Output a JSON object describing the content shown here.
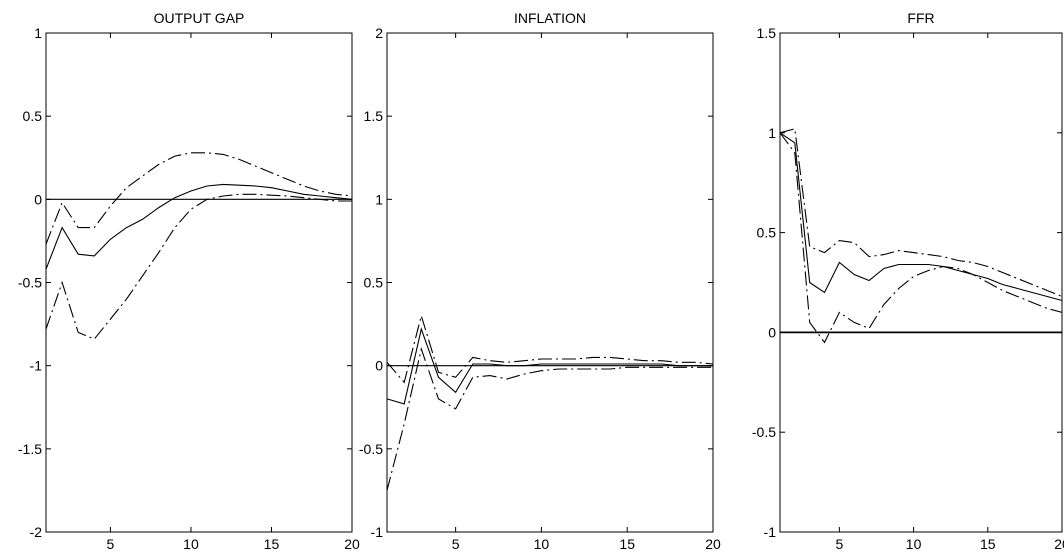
{
  "chart_data": [
    {
      "type": "line",
      "title": "OUTPUT GAP",
      "xlabel": "",
      "ylabel": "",
      "xlim": [
        1,
        20
      ],
      "ylim": [
        -2,
        1
      ],
      "xticks": [
        5,
        10,
        15,
        20
      ],
      "xtick_labels": [
        "5",
        "10",
        "15",
        "20"
      ],
      "yticks": [
        -2,
        -1.5,
        -1,
        -0.5,
        0,
        0.5,
        1
      ],
      "ytick_labels": [
        "-2",
        "-1.5",
        "-1",
        "-0.5",
        "0",
        "0.5",
        "1"
      ],
      "zero_line": true,
      "grid": false,
      "x": [
        1,
        2,
        3,
        4,
        5,
        6,
        7,
        8,
        9,
        10,
        11,
        12,
        13,
        14,
        15,
        16,
        17,
        18,
        19,
        20
      ],
      "series": [
        {
          "style": "solid",
          "values": [
            -0.42,
            -0.17,
            -0.33,
            -0.34,
            -0.24,
            -0.17,
            -0.12,
            -0.05,
            0.01,
            0.05,
            0.08,
            0.09,
            0.085,
            0.08,
            0.07,
            0.05,
            0.03,
            0.02,
            0.01,
            0.0
          ]
        },
        {
          "style": "dashdot",
          "values": [
            -0.27,
            -0.02,
            -0.17,
            -0.17,
            -0.04,
            0.07,
            0.14,
            0.21,
            0.26,
            0.28,
            0.28,
            0.27,
            0.24,
            0.2,
            0.16,
            0.12,
            0.08,
            0.05,
            0.03,
            0.02
          ]
        },
        {
          "style": "dashdot",
          "values": [
            -0.78,
            -0.5,
            -0.8,
            -0.84,
            -0.72,
            -0.6,
            -0.46,
            -0.32,
            -0.17,
            -0.06,
            0.0,
            0.02,
            0.03,
            0.03,
            0.025,
            0.02,
            0.01,
            0.0,
            -0.01,
            -0.01
          ]
        }
      ]
    },
    {
      "type": "line",
      "title": "INFLATION",
      "xlabel": "",
      "ylabel": "",
      "xlim": [
        1,
        20
      ],
      "ylim": [
        -1,
        2
      ],
      "xticks": [
        5,
        10,
        15,
        20
      ],
      "xtick_labels": [
        "5",
        "10",
        "15",
        "20"
      ],
      "yticks": [
        -1,
        -0.5,
        0,
        0.5,
        1,
        1.5,
        2
      ],
      "ytick_labels": [
        "-1",
        "-0.5",
        "0",
        "0.5",
        "1",
        "1.5",
        "2"
      ],
      "zero_line": true,
      "grid": false,
      "x": [
        1,
        2,
        3,
        4,
        5,
        6,
        7,
        8,
        9,
        10,
        11,
        12,
        13,
        14,
        15,
        16,
        17,
        18,
        19,
        20
      ],
      "series": [
        {
          "style": "solid",
          "values": [
            -0.2,
            -0.23,
            0.22,
            -0.07,
            -0.16,
            0.01,
            0.01,
            0.0,
            0.0,
            0.01,
            0.01,
            0.01,
            0.01,
            0.01,
            0.01,
            0.01,
            0.01,
            0.0,
            0.0,
            0.0
          ]
        },
        {
          "style": "dashdot",
          "values": [
            0.02,
            -0.1,
            0.3,
            -0.04,
            -0.07,
            0.05,
            0.03,
            0.02,
            0.03,
            0.04,
            0.04,
            0.04,
            0.05,
            0.05,
            0.04,
            0.03,
            0.03,
            0.02,
            0.02,
            0.01
          ]
        },
        {
          "style": "dashdot",
          "values": [
            -0.75,
            -0.35,
            0.1,
            -0.2,
            -0.26,
            -0.07,
            -0.06,
            -0.08,
            -0.05,
            -0.03,
            -0.02,
            -0.02,
            -0.02,
            -0.02,
            -0.01,
            -0.01,
            -0.01,
            -0.01,
            -0.01,
            -0.01
          ]
        }
      ]
    },
    {
      "type": "line",
      "title": "FFR",
      "xlabel": "",
      "ylabel": "",
      "xlim": [
        1,
        20
      ],
      "ylim": [
        -1,
        1.5
      ],
      "xticks": [
        5,
        10,
        15,
        20
      ],
      "xtick_labels": [
        "5",
        "10",
        "15",
        "20"
      ],
      "yticks": [
        -1,
        -0.5,
        0,
        0.5,
        1,
        1.5
      ],
      "ytick_labels": [
        "-1",
        "-0.5",
        "0",
        "0.5",
        "1",
        "1.5"
      ],
      "zero_line": true,
      "grid": false,
      "x": [
        1,
        2,
        3,
        4,
        5,
        6,
        7,
        8,
        9,
        10,
        11,
        12,
        13,
        14,
        15,
        16,
        17,
        18,
        19,
        20
      ],
      "series": [
        {
          "style": "solid",
          "values": [
            1.0,
            0.95,
            0.25,
            0.2,
            0.35,
            0.29,
            0.26,
            0.32,
            0.34,
            0.34,
            0.34,
            0.33,
            0.31,
            0.29,
            0.27,
            0.24,
            0.22,
            0.2,
            0.18,
            0.16
          ]
        },
        {
          "style": "dashdot",
          "values": [
            1.0,
            1.02,
            0.43,
            0.4,
            0.46,
            0.45,
            0.38,
            0.39,
            0.41,
            0.4,
            0.39,
            0.38,
            0.36,
            0.35,
            0.33,
            0.3,
            0.27,
            0.24,
            0.21,
            0.18
          ]
        },
        {
          "style": "dashdot",
          "values": [
            1.0,
            0.9,
            0.05,
            -0.05,
            0.1,
            0.05,
            0.02,
            0.14,
            0.22,
            0.28,
            0.31,
            0.33,
            0.32,
            0.29,
            0.25,
            0.21,
            0.18,
            0.15,
            0.12,
            0.1
          ]
        }
      ]
    }
  ]
}
